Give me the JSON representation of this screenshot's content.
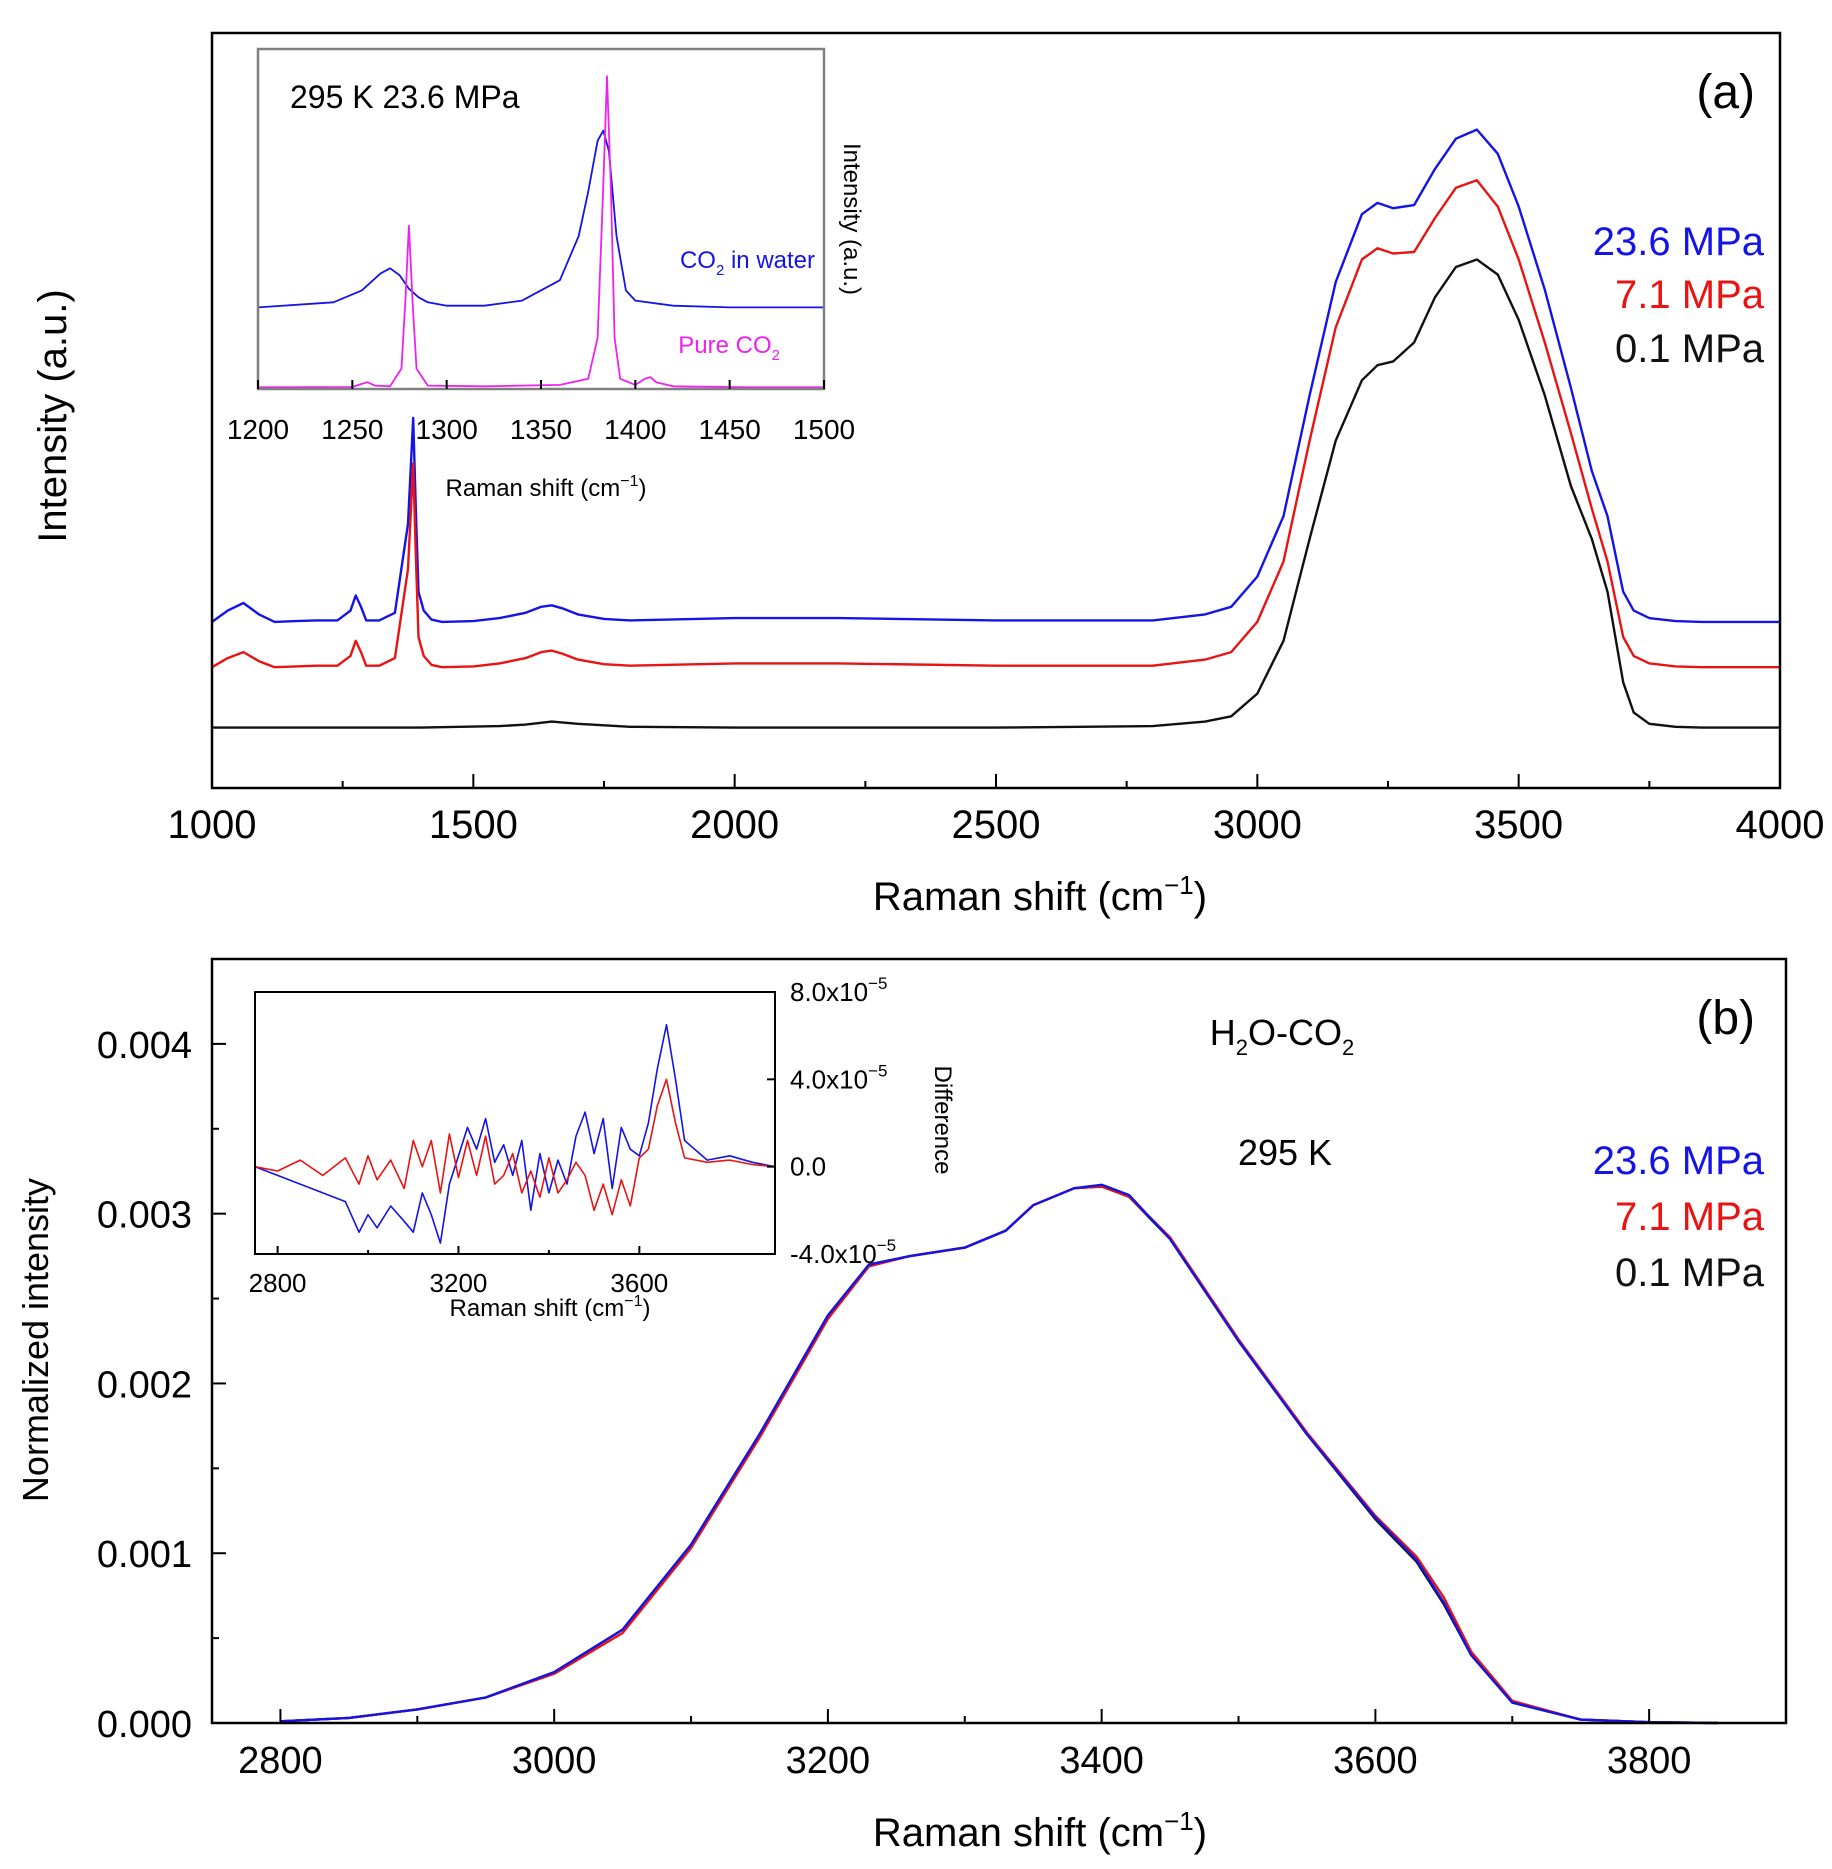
{
  "colors": {
    "blue": "#1414e6",
    "red": "#e81414",
    "black": "#111111",
    "magenta": "#ee22ee"
  },
  "chart_data": [
    {
      "id": "panel_a",
      "type": "line",
      "panel_label": "(a)",
      "xlabel": "Raman shift (cm",
      "xlabel_sup": "−1",
      "xlabel_end": ")",
      "ylabel": "Intensity (a.u.)",
      "xlim": [
        1000,
        4000
      ],
      "ylim": [
        0,
        10
      ],
      "xticks": [
        1000,
        1500,
        2000,
        2500,
        3000,
        3500,
        4000
      ],
      "grid": false,
      "legend": "right",
      "legend_entries": [
        {
          "label": "23.6 MPa",
          "color": "blue"
        },
        {
          "label": "7.1 MPa",
          "color": "red"
        },
        {
          "label": "0.1 MPa",
          "color": "black"
        }
      ],
      "series": [
        {
          "label": "23.6 MPa",
          "color": "blue",
          "base": 2.2,
          "x": [
            1000,
            1030,
            1060,
            1090,
            1120,
            1160,
            1200,
            1240,
            1265,
            1275,
            1285,
            1295,
            1320,
            1350,
            1375,
            1385,
            1390,
            1395,
            1405,
            1420,
            1440,
            1500,
            1550,
            1600,
            1630,
            1650,
            1670,
            1700,
            1750,
            1800,
            2000,
            2200,
            2500,
            2800,
            2900,
            2950,
            3000,
            3050,
            3100,
            3150,
            3200,
            3230,
            3260,
            3300,
            3340,
            3380,
            3420,
            3460,
            3500,
            3550,
            3600,
            3640,
            3670,
            3700,
            3720,
            3750,
            3800,
            3850,
            4000
          ],
          "y": [
            2.2,
            2.35,
            2.45,
            2.3,
            2.2,
            2.21,
            2.22,
            2.22,
            2.35,
            2.55,
            2.4,
            2.22,
            2.22,
            2.32,
            3.5,
            4.9,
            3.7,
            2.6,
            2.35,
            2.23,
            2.2,
            2.21,
            2.25,
            2.32,
            2.4,
            2.42,
            2.38,
            2.3,
            2.24,
            2.22,
            2.25,
            2.25,
            2.22,
            2.22,
            2.3,
            2.4,
            2.8,
            3.6,
            5.2,
            6.7,
            7.6,
            7.75,
            7.68,
            7.72,
            8.2,
            8.6,
            8.72,
            8.4,
            7.7,
            6.6,
            5.3,
            4.2,
            3.6,
            2.6,
            2.35,
            2.25,
            2.21,
            2.2,
            2.2
          ]
        },
        {
          "label": "7.1 MPa",
          "color": "red",
          "base": 1.6,
          "x": [
            1000,
            1030,
            1060,
            1090,
            1120,
            1160,
            1200,
            1240,
            1265,
            1275,
            1285,
            1295,
            1320,
            1350,
            1375,
            1385,
            1390,
            1395,
            1405,
            1420,
            1440,
            1500,
            1550,
            1600,
            1630,
            1650,
            1670,
            1700,
            1750,
            1800,
            2000,
            2200,
            2500,
            2800,
            2900,
            2950,
            3000,
            3050,
            3100,
            3150,
            3200,
            3230,
            3260,
            3300,
            3340,
            3380,
            3420,
            3460,
            3500,
            3550,
            3600,
            3640,
            3670,
            3700,
            3720,
            3750,
            3800,
            3850,
            4000
          ],
          "y": [
            1.6,
            1.72,
            1.8,
            1.68,
            1.6,
            1.61,
            1.62,
            1.62,
            1.75,
            1.95,
            1.8,
            1.62,
            1.62,
            1.72,
            2.9,
            4.3,
            3.1,
            2.0,
            1.75,
            1.63,
            1.6,
            1.61,
            1.65,
            1.72,
            1.8,
            1.82,
            1.78,
            1.7,
            1.64,
            1.62,
            1.65,
            1.65,
            1.62,
            1.62,
            1.7,
            1.8,
            2.2,
            3.0,
            4.6,
            6.1,
            7.0,
            7.15,
            7.08,
            7.1,
            7.55,
            7.95,
            8.05,
            7.7,
            7.0,
            5.9,
            4.7,
            3.7,
            3.0,
            2.0,
            1.75,
            1.65,
            1.61,
            1.6,
            1.6
          ]
        },
        {
          "label": "0.1 MPa",
          "color": "black",
          "base": 0.8,
          "x": [
            1000,
            1200,
            1400,
            1550,
            1600,
            1650,
            1700,
            1800,
            2000,
            2500,
            2800,
            2900,
            2950,
            3000,
            3050,
            3100,
            3150,
            3200,
            3230,
            3260,
            3300,
            3340,
            3380,
            3420,
            3460,
            3500,
            3550,
            3600,
            3640,
            3670,
            3700,
            3720,
            3750,
            3800,
            3850,
            4000
          ],
          "y": [
            0.8,
            0.8,
            0.8,
            0.82,
            0.84,
            0.88,
            0.85,
            0.81,
            0.8,
            0.8,
            0.82,
            0.88,
            0.95,
            1.25,
            1.95,
            3.3,
            4.6,
            5.4,
            5.6,
            5.65,
            5.9,
            6.5,
            6.9,
            7.0,
            6.8,
            6.2,
            5.2,
            4.0,
            3.3,
            2.6,
            1.4,
            1.0,
            0.85,
            0.81,
            0.8,
            0.8
          ]
        }
      ]
    },
    {
      "id": "panel_a_inset",
      "type": "line",
      "title": "295 K  23.6 MPa",
      "xlabel": "Raman shift (cm",
      "xlabel_sup": "−1",
      "xlabel_end": ")",
      "ylabel": "Intensity (a.u.)",
      "xlim": [
        1200,
        1500
      ],
      "ylim": [
        0,
        10
      ],
      "xticks": [
        1200,
        1250,
        1300,
        1350,
        1400,
        1450,
        1500
      ],
      "grid": false,
      "annotations": [
        {
          "text": "CO",
          "sub": "2",
          "rest": " in water",
          "color": "blue",
          "x": 1465,
          "y": 4.8
        },
        {
          "text": "Pure CO",
          "sub": "2",
          "rest": "",
          "color": "magenta",
          "x": 1465,
          "y": 1.1
        }
      ],
      "series": [
        {
          "label": "CO2 in water",
          "color": "blue",
          "x": [
            1200,
            1240,
            1255,
            1265,
            1270,
            1275,
            1280,
            1285,
            1290,
            1300,
            1320,
            1340,
            1360,
            1370,
            1375,
            1380,
            1383,
            1386,
            1390,
            1395,
            1400,
            1420,
            1450,
            1480,
            1500
          ],
          "y": [
            2.4,
            2.55,
            2.9,
            3.4,
            3.55,
            3.35,
            2.95,
            2.7,
            2.55,
            2.45,
            2.45,
            2.6,
            3.2,
            4.5,
            5.8,
            7.3,
            7.6,
            7.0,
            4.5,
            2.9,
            2.6,
            2.45,
            2.4,
            2.4,
            2.4
          ]
        },
        {
          "label": "Pure CO2",
          "color": "magenta",
          "x": [
            1200,
            1250,
            1255,
            1258,
            1262,
            1270,
            1276,
            1278,
            1280,
            1282,
            1284,
            1290,
            1320,
            1360,
            1375,
            1380,
            1383,
            1385,
            1387,
            1389,
            1392,
            1400,
            1405,
            1408,
            1411,
            1420,
            1460,
            1500
          ],
          "y": [
            0.05,
            0.06,
            0.15,
            0.2,
            0.1,
            0.08,
            0.6,
            2.5,
            4.8,
            2.5,
            0.6,
            0.1,
            0.08,
            0.12,
            0.3,
            1.5,
            6.0,
            9.2,
            6.0,
            1.5,
            0.3,
            0.12,
            0.3,
            0.35,
            0.2,
            0.08,
            0.05,
            0.05
          ]
        }
      ]
    },
    {
      "id": "panel_b",
      "type": "line",
      "panel_label": "(b)",
      "annotation_sample": "H",
      "annotation_sample_sub1": "2",
      "annotation_sample_mid": "O-CO",
      "annotation_sample_sub2": "2",
      "annotation_temp": "295 K",
      "xlabel": "Raman shift (cm",
      "xlabel_sup": "−1",
      "xlabel_end": ")",
      "ylabel": "Normalized intensity",
      "xlim": [
        2750,
        3900
      ],
      "ylim": [
        0,
        0.0045
      ],
      "xticks": [
        2800,
        3000,
        3200,
        3400,
        3600,
        3800
      ],
      "yticks": [
        "0.000",
        "0.001",
        "0.002",
        "0.003",
        "0.004"
      ],
      "ytick_values": [
        0,
        0.001,
        0.002,
        0.003,
        0.004
      ],
      "grid": false,
      "legend": "right",
      "legend_entries": [
        {
          "label": "23.6 MPa",
          "color": "blue"
        },
        {
          "label": "7.1 MPa",
          "color": "red"
        },
        {
          "label": "0.1 MPa",
          "color": "black"
        }
      ],
      "series": [
        {
          "label": "0.1 MPa",
          "color": "black",
          "x": [
            2800,
            2850,
            2900,
            2950,
            3000,
            3050,
            3100,
            3150,
            3200,
            3230,
            3260,
            3300,
            3330,
            3350,
            3380,
            3400,
            3420,
            3450,
            3500,
            3550,
            3600,
            3630,
            3650,
            3670,
            3700,
            3750,
            3800,
            3850
          ],
          "y": [
            1e-05,
            3e-05,
            8e-05,
            0.00015,
            0.0003,
            0.00055,
            0.00105,
            0.0017,
            0.0024,
            0.0027,
            0.00275,
            0.0028,
            0.0029,
            0.00305,
            0.00315,
            0.00316,
            0.0031,
            0.00285,
            0.00225,
            0.0017,
            0.0012,
            0.00095,
            0.0007,
            0.0004,
            0.00012,
            2e-05,
            5e-06,
            0.0
          ]
        },
        {
          "label": "7.1 MPa",
          "color": "red",
          "x": [
            2800,
            2850,
            2900,
            2950,
            3000,
            3050,
            3100,
            3150,
            3200,
            3230,
            3260,
            3300,
            3330,
            3350,
            3380,
            3400,
            3420,
            3450,
            3500,
            3550,
            3600,
            3630,
            3650,
            3670,
            3700,
            3750,
            3800,
            3850
          ],
          "y": [
            1e-05,
            3e-05,
            8e-05,
            0.00015,
            0.00029,
            0.00053,
            0.00103,
            0.00168,
            0.00238,
            0.00269,
            0.00275,
            0.0028,
            0.0029,
            0.00305,
            0.00315,
            0.00316,
            0.0031,
            0.00286,
            0.00226,
            0.00171,
            0.00122,
            0.00098,
            0.00074,
            0.00042,
            0.00013,
            2e-05,
            5e-06,
            0.0
          ]
        },
        {
          "label": "23.6 MPa",
          "color": "blue",
          "x": [
            2800,
            2850,
            2900,
            2950,
            3000,
            3050,
            3100,
            3150,
            3200,
            3230,
            3260,
            3300,
            3330,
            3350,
            3380,
            3400,
            3420,
            3450,
            3500,
            3550,
            3600,
            3630,
            3650,
            3670,
            3700,
            3750,
            3800,
            3850
          ],
          "y": [
            1e-05,
            3e-05,
            8e-05,
            0.00015,
            0.0003,
            0.00055,
            0.00105,
            0.0017,
            0.0024,
            0.0027,
            0.00275,
            0.0028,
            0.0029,
            0.00305,
            0.00315,
            0.00317,
            0.00311,
            0.00285,
            0.00225,
            0.0017,
            0.00121,
            0.00096,
            0.00071,
            0.0004,
            0.00012,
            2e-05,
            5e-06,
            0.0
          ]
        }
      ]
    },
    {
      "id": "panel_b_inset",
      "type": "line",
      "xlabel": "Raman shift (cm",
      "xlabel_sup": "−1",
      "xlabel_end": ")",
      "ylabel": "Difference",
      "xlim": [
        2750,
        3900
      ],
      "ylim": [
        -4e-05,
        8e-05
      ],
      "xticks": [
        2800,
        3200,
        3600
      ],
      "yticks": [
        {
          "value": 8e-05,
          "mant": "8.0x10",
          "exp": "−5"
        },
        {
          "value": 4e-05,
          "mant": "4.0x10",
          "exp": "−5"
        },
        {
          "value": 0,
          "mant": "0.0",
          "exp": ""
        },
        {
          "value": -4e-05,
          "mant": "-4.0x10",
          "exp": "−5"
        }
      ],
      "grid": false,
      "series": [
        {
          "label": "23.6 MPa",
          "color": "blue",
          "x": [
            2750,
            2800,
            2850,
            2900,
            2950,
            2980,
            3000,
            3020,
            3050,
            3080,
            3100,
            3120,
            3140,
            3160,
            3180,
            3200,
            3220,
            3240,
            3260,
            3280,
            3300,
            3320,
            3340,
            3360,
            3380,
            3400,
            3420,
            3440,
            3460,
            3480,
            3500,
            3520,
            3540,
            3560,
            3580,
            3600,
            3620,
            3640,
            3660,
            3680,
            3700,
            3750,
            3800,
            3850,
            3900
          ],
          "y": [
            0.0,
            -4e-06,
            -8e-06,
            -1.2e-05,
            -1.6e-05,
            -3e-05,
            -2.2e-05,
            -2.8e-05,
            -1.8e-05,
            -2.5e-05,
            -3e-05,
            -1.2e-05,
            -2.2e-05,
            -3.5e-05,
            -8e-06,
            5e-06,
            1.8e-05,
            8e-06,
            2.2e-05,
            2e-06,
            1e-05,
            -4e-06,
            1.2e-05,
            -2e-05,
            6e-06,
            -1.2e-05,
            3e-06,
            -8e-06,
            1.4e-05,
            2.5e-05,
            6e-06,
            2.2e-05,
            -1e-05,
            1.8e-05,
            8e-06,
            5e-06,
            2e-05,
            4.5e-05,
            6.5e-05,
            4e-05,
            1.2e-05,
            3e-06,
            5e-06,
            2e-06,
            0.0
          ]
        },
        {
          "label": "7.1 MPa",
          "color": "red",
          "x": [
            2750,
            2800,
            2850,
            2900,
            2950,
            2980,
            3000,
            3020,
            3050,
            3080,
            3100,
            3120,
            3140,
            3160,
            3180,
            3200,
            3220,
            3240,
            3260,
            3280,
            3300,
            3320,
            3340,
            3360,
            3380,
            3400,
            3420,
            3440,
            3460,
            3480,
            3500,
            3520,
            3540,
            3560,
            3580,
            3600,
            3620,
            3640,
            3660,
            3680,
            3700,
            3750,
            3800,
            3850,
            3900
          ],
          "y": [
            0.0,
            -2e-06,
            3e-06,
            -4e-06,
            4e-06,
            -8e-06,
            5e-06,
            -6e-06,
            3e-06,
            -1e-05,
            1.2e-05,
            0.0,
            1.2e-05,
            -1.2e-05,
            1.5e-05,
            -5e-06,
            1.2e-05,
            -4e-06,
            1.4e-05,
            -8e-06,
            -4e-06,
            6e-06,
            -1.2e-05,
            -2e-06,
            -1.4e-05,
            4e-06,
            -1.2e-05,
            -6e-06,
            2e-06,
            -4e-06,
            -2e-05,
            -8e-06,
            -2.2e-05,
            -6e-06,
            -1.8e-05,
            4e-06,
            8e-06,
            2.8e-05,
            4e-05,
            2e-05,
            4e-06,
            2e-06,
            3e-06,
            1e-06,
            0.0
          ]
        }
      ]
    }
  ]
}
